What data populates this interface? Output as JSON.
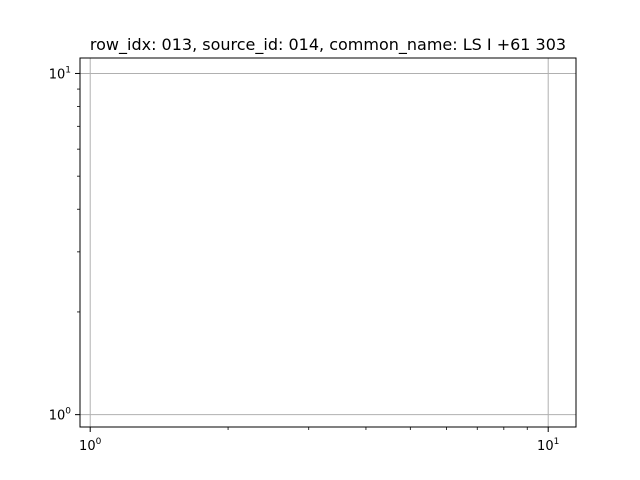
{
  "chart_data": {
    "type": "scatter",
    "title": "row_idx: 013, source_id: 014, common_name: LS I +61 303",
    "xlabel": "",
    "ylabel": "",
    "x_scale": "log",
    "y_scale": "log",
    "xlim": [
      0.95,
      11.5
    ],
    "ylim": [
      0.92,
      11.1
    ],
    "x_ticks": [
      {
        "value": 1,
        "base": "10",
        "exp": "0"
      },
      {
        "value": 10,
        "base": "10",
        "exp": "1"
      }
    ],
    "y_ticks": [
      {
        "value": 1,
        "base": "10",
        "exp": "0"
      },
      {
        "value": 10,
        "base": "10",
        "exp": "1"
      }
    ],
    "grid": true,
    "series": []
  },
  "colors": {
    "grid": "#b0b0b0",
    "axes": "#000000",
    "background": "#ffffff"
  }
}
